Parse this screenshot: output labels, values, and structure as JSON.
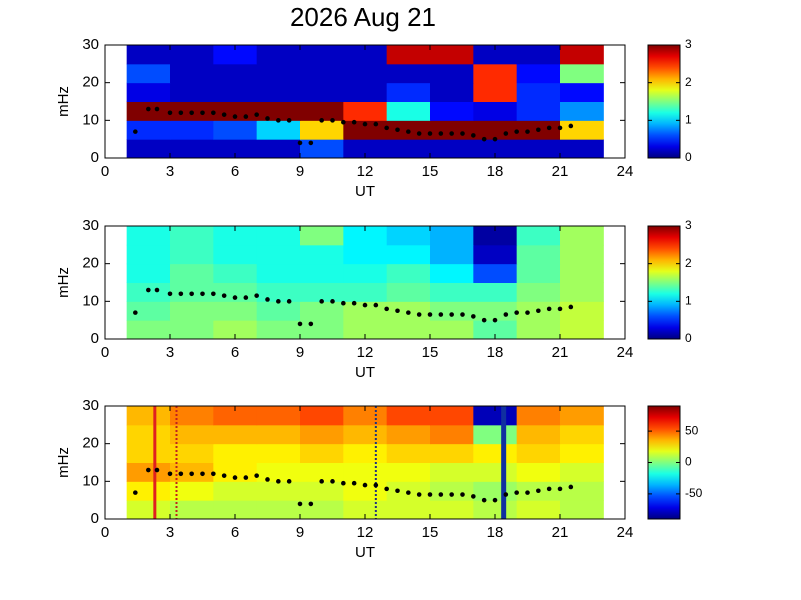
{
  "chart_data": [
    {
      "type": "heatmap",
      "title": "2026 Aug 21",
      "xlabel": "UT",
      "ylabel": "mHz",
      "xlim": [
        0,
        24
      ],
      "xticks": [
        0,
        3,
        6,
        9,
        12,
        15,
        18,
        21,
        24
      ],
      "ylim": [
        0,
        30
      ],
      "yticks": [
        0,
        10,
        20,
        30
      ],
      "clim": [
        0,
        3
      ],
      "cticks": [
        0,
        1,
        2,
        3
      ],
      "x_bins": [
        1,
        3,
        5,
        7,
        9,
        11,
        13,
        15,
        17,
        19,
        21,
        23
      ],
      "y_bins": [
        0,
        5,
        10,
        15,
        20,
        25,
        30
      ],
      "z": [
        [
          0.2,
          0.2,
          0.2,
          0.2,
          0.6,
          0.2,
          0.2,
          0.2,
          0.2,
          0.2,
          0.2
        ],
        [
          0.5,
          0.5,
          0.6,
          1,
          2,
          3,
          3,
          3,
          3,
          3,
          2
        ],
        [
          3,
          3,
          3,
          3,
          3,
          2.5,
          1.2,
          0.4,
          0.3,
          0.5,
          0.8
        ],
        [
          0.3,
          0.2,
          0.2,
          0.2,
          0.2,
          0.2,
          0.5,
          0.2,
          2.5,
          0.5,
          0.4
        ],
        [
          0.6,
          0.2,
          0.2,
          0.2,
          0.2,
          0.2,
          0.2,
          0.2,
          2.5,
          0.4,
          1.5
        ],
        [
          0.2,
          0.2,
          0.4,
          0.2,
          0.2,
          0.2,
          2.8,
          2.8,
          0.2,
          0.2,
          2.8
        ]
      ],
      "track": {
        "color": "#000000",
        "x": [
          1.4,
          2,
          2.4,
          3,
          3.5,
          4,
          4.5,
          5,
          5.5,
          6,
          6.5,
          7,
          7.5,
          8,
          8.5,
          9,
          9.5,
          10,
          10.5,
          11,
          11.5,
          12,
          12.5,
          13,
          13.5,
          14,
          14.5,
          15,
          15.5,
          16,
          16.5,
          17,
          17.5,
          18,
          18.5,
          19,
          19.5,
          20,
          20.5,
          21,
          21.5
        ],
        "y": [
          7,
          13,
          13,
          12,
          12,
          12,
          12,
          12,
          11.5,
          11,
          11,
          11.5,
          10.5,
          10,
          10,
          4,
          4,
          10,
          10,
          9.5,
          9.5,
          9,
          9,
          8,
          7.5,
          7,
          6.5,
          6.5,
          6.5,
          6.5,
          6.5,
          6,
          5,
          5,
          6.5,
          7,
          7,
          7.5,
          8,
          8,
          8.5
        ]
      }
    },
    {
      "type": "heatmap",
      "xlabel": "UT",
      "ylabel": "mHz",
      "xlim": [
        0,
        24
      ],
      "xticks": [
        0,
        3,
        6,
        9,
        12,
        15,
        18,
        21,
        24
      ],
      "ylim": [
        0,
        30
      ],
      "yticks": [
        0,
        10,
        20,
        30
      ],
      "clim": [
        0,
        3
      ],
      "cticks": [
        0,
        1,
        2,
        3
      ],
      "x_bins": [
        1,
        3,
        5,
        7,
        9,
        11,
        13,
        15,
        17,
        19,
        21,
        23
      ],
      "y_bins": [
        0,
        5,
        10,
        15,
        20,
        25,
        30
      ],
      "z": [
        [
          1.5,
          1.5,
          1.6,
          1.5,
          1.5,
          1.6,
          1.6,
          1.6,
          1.4,
          1.6,
          1.7
        ],
        [
          1.4,
          1.5,
          1.5,
          1.4,
          1.5,
          1.6,
          1.6,
          1.5,
          1.5,
          1.6,
          1.7
        ],
        [
          1.3,
          1.4,
          1.4,
          1.3,
          1.3,
          1.3,
          1.4,
          1.3,
          1.3,
          1.5,
          1.6
        ],
        [
          1.2,
          1.4,
          1.3,
          1.2,
          1.2,
          1.2,
          1.3,
          1.1,
          0.6,
          1.4,
          1.6
        ],
        [
          1.2,
          1.3,
          1.2,
          1.2,
          1.2,
          1.1,
          1.1,
          0.9,
          0.2,
          1.4,
          1.6
        ],
        [
          1.2,
          1.3,
          1.2,
          1.2,
          1.5,
          1.1,
          1.0,
          0.9,
          0.1,
          1.3,
          1.6
        ]
      ],
      "track": {
        "color": "#000000",
        "x": [
          1.4,
          2,
          2.4,
          3,
          3.5,
          4,
          4.5,
          5,
          5.5,
          6,
          6.5,
          7,
          7.5,
          8,
          8.5,
          9,
          9.5,
          10,
          10.5,
          11,
          11.5,
          12,
          12.5,
          13,
          13.5,
          14,
          14.5,
          15,
          15.5,
          16,
          16.5,
          17,
          17.5,
          18,
          18.5,
          19,
          19.5,
          20,
          20.5,
          21,
          21.5
        ],
        "y": [
          7,
          13,
          13,
          12,
          12,
          12,
          12,
          12,
          11.5,
          11,
          11,
          11.5,
          10.5,
          10,
          10,
          4,
          4,
          10,
          10,
          9.5,
          9.5,
          9,
          9,
          8,
          7.5,
          7,
          6.5,
          6.5,
          6.5,
          6.5,
          6.5,
          6,
          5,
          5,
          6.5,
          7,
          7,
          7.5,
          8,
          8,
          8.5
        ]
      }
    },
    {
      "type": "heatmap",
      "xlabel": "UT",
      "ylabel": "mHz",
      "xlim": [
        0,
        24
      ],
      "xticks": [
        0,
        3,
        6,
        9,
        12,
        15,
        18,
        21,
        24
      ],
      "ylim": [
        0,
        30
      ],
      "yticks": [
        0,
        10,
        20,
        30
      ],
      "clim": [
        -90,
        90
      ],
      "cticks": [
        -50,
        0,
        50
      ],
      "x_bins": [
        1,
        3,
        5,
        7,
        9,
        11,
        13,
        15,
        17,
        19,
        21,
        23
      ],
      "y_bins": [
        0,
        5,
        10,
        15,
        20,
        25,
        30
      ],
      "z": [
        [
          15,
          10,
          10,
          10,
          10,
          15,
          15,
          15,
          10,
          15,
          10
        ],
        [
          25,
          20,
          15,
          15,
          15,
          20,
          15,
          10,
          5,
          10,
          10
        ],
        [
          40,
          35,
          25,
          20,
          20,
          20,
          20,
          15,
          15,
          20,
          15
        ],
        [
          30,
          30,
          25,
          25,
          30,
          25,
          30,
          30,
          25,
          30,
          25
        ],
        [
          30,
          35,
          35,
          35,
          40,
          35,
          40,
          45,
          0,
          35,
          30
        ],
        [
          35,
          45,
          50,
          50,
          55,
          45,
          55,
          55,
          -80,
          45,
          40
        ]
      ],
      "track": {
        "color": "#000000",
        "x": [
          1.4,
          2,
          2.4,
          3,
          3.5,
          4,
          4.5,
          5,
          5.5,
          6,
          6.5,
          7,
          7.5,
          8,
          8.5,
          9,
          9.5,
          10,
          10.5,
          11,
          11.5,
          12,
          12.5,
          13,
          13.5,
          14,
          14.5,
          15,
          15.5,
          16,
          16.5,
          17,
          17.5,
          18,
          18.5,
          19,
          19.5,
          20,
          20.5,
          21,
          21.5
        ],
        "y": [
          7,
          13,
          13,
          12,
          12,
          12,
          12,
          12,
          11.5,
          11,
          11,
          11.5,
          10.5,
          10,
          10,
          4,
          4,
          10,
          10,
          9.5,
          9.5,
          9,
          9,
          8,
          7.5,
          7,
          6.5,
          6.5,
          6.5,
          6.5,
          6.5,
          6,
          5,
          5,
          6.5,
          7,
          7,
          7.5,
          8,
          8,
          8.5
        ]
      },
      "vlines": [
        {
          "x": 2.3,
          "color": "#e02020",
          "width": 3,
          "dashed": false
        },
        {
          "x": 3.3,
          "color": "#c02020",
          "width": 2,
          "dashed": true
        },
        {
          "x": 12.5,
          "color": "#203080",
          "width": 2,
          "dashed": true
        },
        {
          "x": 18.4,
          "color": "#1030a0",
          "width": 5,
          "dashed": false
        }
      ]
    }
  ]
}
